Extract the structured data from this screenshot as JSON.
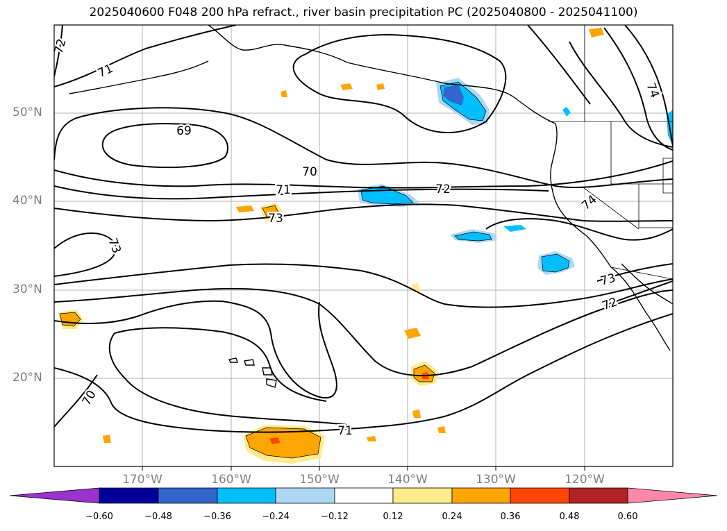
{
  "title": "2025040600 F048 200 hPa refract., river basin precipitation PC (2025040800 - 2025041100)",
  "map": {
    "lat_labels": [
      "50°N",
      "40°N",
      "30°N",
      "20°N"
    ],
    "lon_labels": [
      "170°W",
      "160°W",
      "150°W",
      "140°W",
      "130°W",
      "120°W"
    ],
    "contour_labels": [
      "72",
      "71",
      "69",
      "70",
      "71",
      "72",
      "73",
      "73",
      "74",
      "74",
      "73",
      "72",
      "70",
      "71"
    ]
  },
  "colorbar": {
    "colors": [
      "#9933cc",
      "#000099",
      "#3366cc",
      "#00bfff",
      "#add8f5",
      "#ffffff",
      "#ffeb8a",
      "#ffa500",
      "#ff4500",
      "#b22222",
      "#ff88aa"
    ],
    "tick_labels": [
      "−0.60",
      "−0.48",
      "−0.36",
      "−0.24",
      "−0.12",
      "0.12",
      "0.24",
      "0.36",
      "0.48",
      "0.60"
    ]
  }
}
